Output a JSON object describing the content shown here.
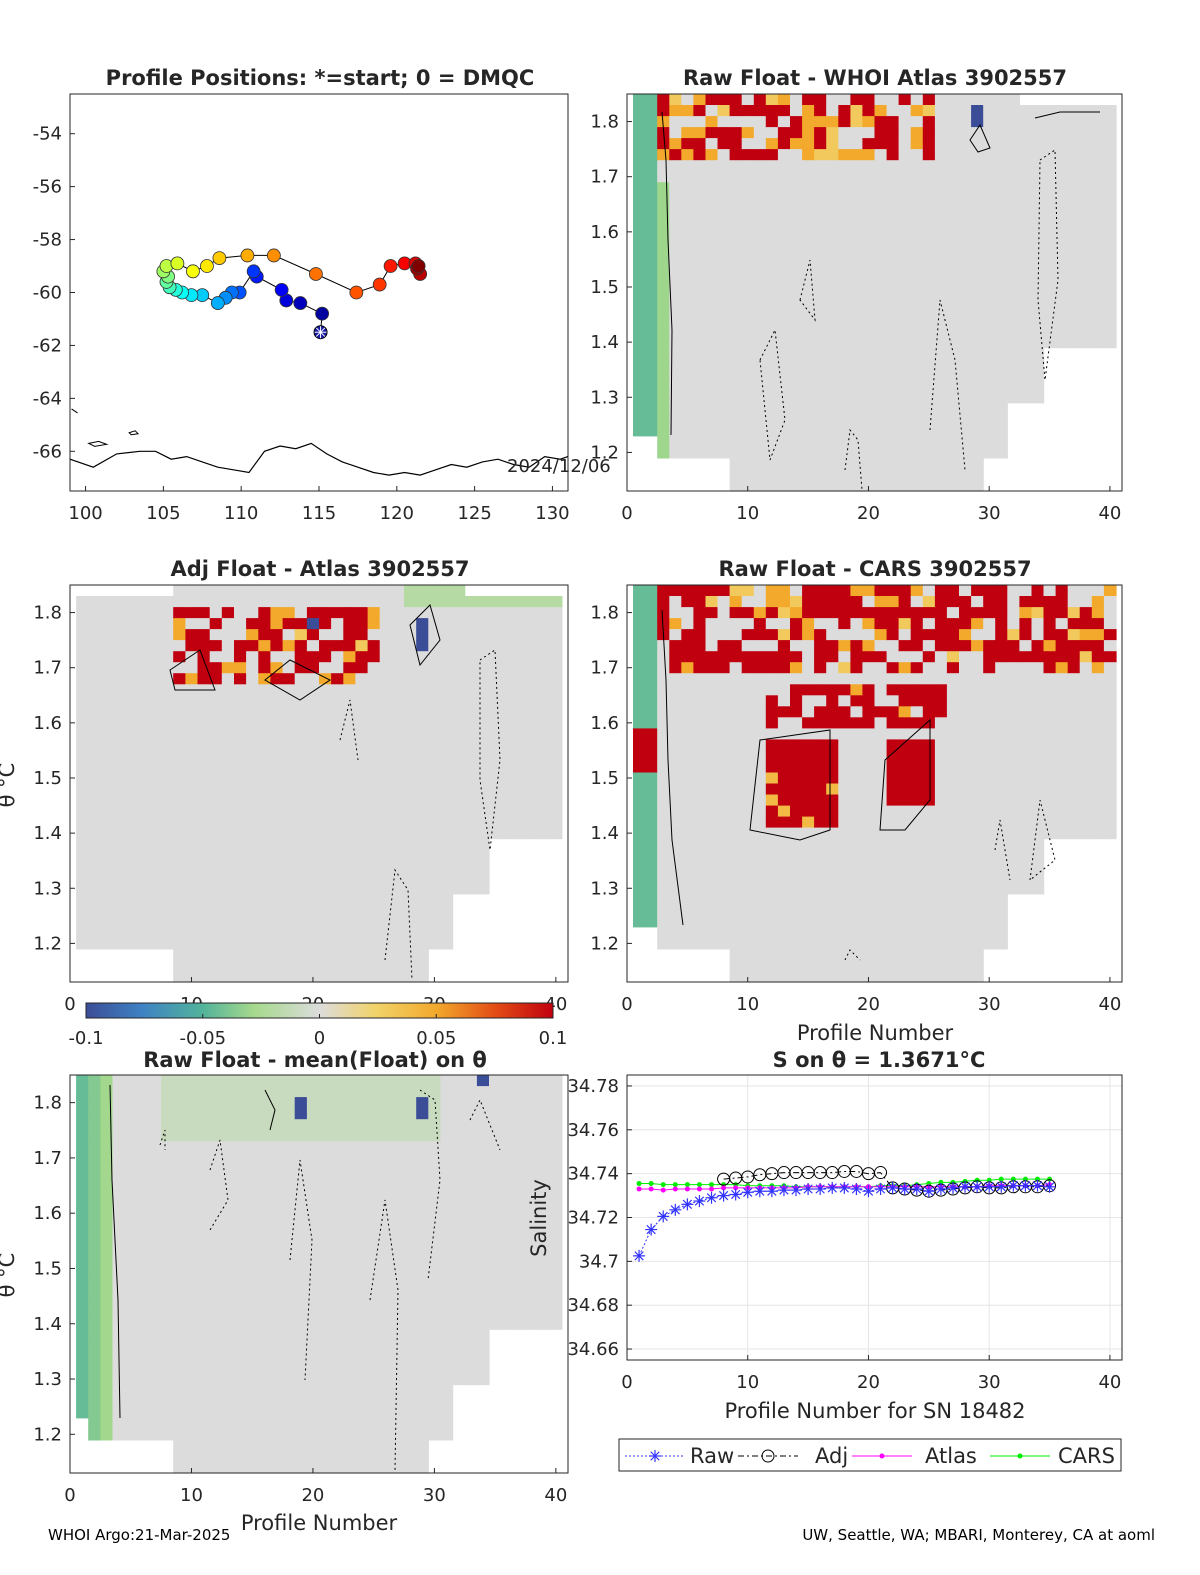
{
  "chart_data": [
    {
      "id": "map",
      "type": "scatter",
      "title": "Profile Positions: *=start; 0 = DMQC",
      "xlim": [
        99,
        131
      ],
      "ylim": [
        -67.5,
        -52.5
      ],
      "x_ticks": [
        "100",
        "105",
        "110",
        "115",
        "120",
        "125",
        "130"
      ],
      "y_ticks": [
        "-54",
        "-56",
        "-58",
        "-60",
        "-62",
        "-64",
        "-66"
      ],
      "date_label": "2024/12/06",
      "track_lon": [
        115.1,
        115.2,
        113.8,
        112.9,
        112.6,
        111.0,
        110.8,
        109.9,
        109.4,
        109.0,
        108.5,
        107.5,
        106.8,
        106.2,
        105.8,
        105.4,
        105.2,
        105.3,
        105.0,
        105.2,
        105.9,
        106.9,
        107.8,
        108.6,
        110.4,
        112.1,
        114.8,
        117.4,
        118.9,
        119.6,
        120.5,
        121.2,
        121.5,
        121.3,
        121.4
      ],
      "track_lat": [
        -61.5,
        -60.8,
        -60.4,
        -60.3,
        -59.9,
        -59.4,
        -59.2,
        -60.0,
        -60.0,
        -60.2,
        -60.4,
        -60.1,
        -60.1,
        -60.0,
        -59.9,
        -59.8,
        -59.6,
        -59.4,
        -59.2,
        -59.0,
        -58.9,
        -59.2,
        -59.0,
        -58.7,
        -58.6,
        -58.6,
        -59.3,
        -60.0,
        -59.7,
        -59.0,
        -58.9,
        -58.9,
        -59.3,
        -59.1,
        -59.0
      ],
      "coast_lon": [
        99,
        100.5,
        102,
        103.5,
        104.5,
        105.5,
        106.5,
        107.5,
        108.5,
        109.5,
        110.5,
        111.5,
        112.5,
        113.5,
        114.5,
        115.5,
        116.5,
        117.5,
        118.5,
        119.5,
        120.5,
        121.5,
        122.5,
        123.5,
        124.5,
        125.5,
        126.5,
        127.5,
        128.5,
        129.5,
        130.5,
        131
      ],
      "coast_lat": [
        -66.3,
        -66.6,
        -66.1,
        -66.0,
        -66.0,
        -66.3,
        -66.2,
        -66.4,
        -66.6,
        -66.7,
        -66.8,
        -66.0,
        -65.8,
        -65.9,
        -65.7,
        -66.1,
        -66.4,
        -66.6,
        -66.8,
        -66.9,
        -66.8,
        -66.9,
        -66.7,
        -66.5,
        -66.6,
        -66.4,
        -66.3,
        -66.5,
        -66.6,
        -66.2,
        -66.3,
        -66.2
      ]
    },
    {
      "id": "raw-atlas",
      "type": "heatmap",
      "title": "Raw Float - WHOI Atlas  3902557",
      "xlim": [
        0,
        41
      ],
      "ylim": [
        1.13,
        1.85
      ]
    },
    {
      "id": "adj-atlas",
      "type": "heatmap",
      "title": "Adj Float - Atlas  3902557",
      "ylabel": "θ °C",
      "xlim": [
        0,
        41
      ],
      "ylim": [
        1.13,
        1.85
      ]
    },
    {
      "id": "raw-cars",
      "type": "heatmap",
      "title": "Raw Float - CARS  3902557",
      "xlabel": "Profile Number",
      "xlim": [
        0,
        41
      ],
      "ylim": [
        1.13,
        1.85
      ]
    },
    {
      "id": "colorbar",
      "type": "heatmap",
      "clim": [
        -0.1,
        0.1
      ],
      "ticks": [
        "-0.1",
        "-0.05",
        "0",
        "0.05",
        "0.1"
      ]
    },
    {
      "id": "raw-mean",
      "type": "heatmap",
      "title": "Raw Float - mean(Float) on θ",
      "xlabel": "Profile Number",
      "ylabel": "θ °C",
      "xlim": [
        0,
        41
      ],
      "ylim": [
        1.13,
        1.85
      ]
    },
    {
      "id": "salinity",
      "type": "line",
      "title": "S on θ = 1.3671°C",
      "xlabel": "Profile Number for SN 18482",
      "ylabel": "Salinity",
      "xlim": [
        0,
        41
      ],
      "ylim": [
        34.655,
        34.785
      ],
      "grid": true,
      "legend": "bottom",
      "x": [
        1,
        2,
        3,
        4,
        5,
        6,
        7,
        8,
        9,
        10,
        11,
        12,
        13,
        14,
        15,
        16,
        17,
        18,
        19,
        20,
        21,
        22,
        23,
        24,
        25,
        26,
        27,
        28,
        29,
        30,
        31,
        32,
        33,
        34,
        35
      ],
      "series": [
        {
          "name": "Raw",
          "color": "#3333ff",
          "marker": "star",
          "values": [
            34.7025,
            34.7145,
            34.7205,
            34.7235,
            34.726,
            34.7275,
            34.729,
            34.73,
            34.7305,
            34.7315,
            34.732,
            34.732,
            34.7325,
            34.7325,
            34.733,
            34.733,
            34.7335,
            34.7335,
            34.733,
            34.732,
            34.733,
            34.7335,
            34.733,
            34.733,
            34.732,
            34.733,
            34.7335,
            34.734,
            34.734,
            34.734,
            34.734,
            34.7345,
            34.7345,
            34.7345,
            34.734
          ]
        },
        {
          "name": "Adj",
          "color": "#000000",
          "marker": "circle",
          "values": [
            null,
            null,
            null,
            null,
            null,
            null,
            null,
            34.7375,
            34.738,
            34.7385,
            34.7395,
            34.74,
            34.7405,
            34.7405,
            34.7405,
            34.7405,
            34.7405,
            34.741,
            34.741,
            34.74,
            34.7405,
            34.7335,
            34.733,
            34.7325,
            34.732,
            34.7325,
            34.733,
            34.7335,
            34.734,
            34.7335,
            34.7335,
            34.734,
            34.734,
            34.734,
            34.7345
          ]
        },
        {
          "name": "Atlas",
          "color": "#ff00ff",
          "marker": "dot",
          "values": [
            34.733,
            34.733,
            34.7325,
            34.733,
            34.733,
            34.733,
            34.733,
            34.7335,
            34.7335,
            34.7335,
            34.7335,
            34.7335,
            34.7335,
            34.7335,
            34.734,
            34.734,
            34.734,
            34.734,
            34.734,
            34.734,
            34.734,
            34.734,
            34.734,
            34.734,
            34.734,
            34.734,
            34.734,
            34.734,
            34.734,
            34.7345,
            34.7345,
            34.7345,
            34.7345,
            34.7345,
            34.735
          ]
        },
        {
          "name": "CARS",
          "color": "#00ee00",
          "marker": "dot",
          "values": [
            34.7355,
            34.7355,
            34.735,
            34.735,
            34.735,
            34.735,
            34.735,
            34.735,
            34.735,
            34.7345,
            34.7345,
            34.7345,
            34.7345,
            34.734,
            34.734,
            34.734,
            34.734,
            34.734,
            34.734,
            34.734,
            34.7345,
            34.7345,
            34.7345,
            34.735,
            34.7355,
            34.736,
            34.736,
            34.7365,
            34.737,
            34.737,
            34.7375,
            34.7375,
            34.7375,
            34.7375,
            34.7375
          ]
        }
      ]
    }
  ],
  "footer": {
    "left": "WHOI Argo:21-Mar-2025",
    "right": "UW, Seattle, WA; MBARI, Monterey, CA at aoml"
  },
  "colors": {
    "neutral": "#d9d9d9",
    "positive": "#c00010",
    "negative": "#3a5a9c",
    "green_band": "#a8dc8c"
  }
}
